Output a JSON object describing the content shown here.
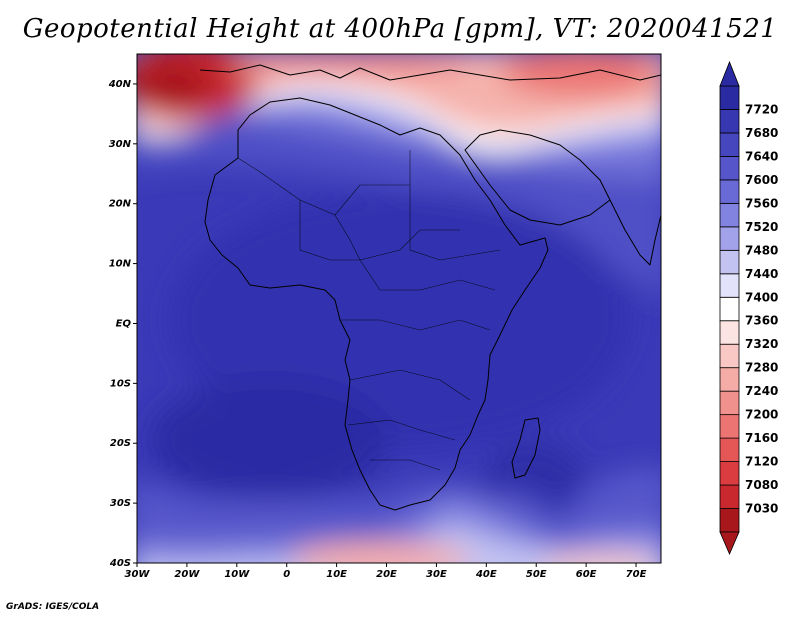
{
  "chart_data": {
    "type": "heatmap",
    "title": "Geopotential Height at 400hPa [gpm], VT: 2020041521",
    "variable": "Geopotential Height",
    "level": "400hPa",
    "units": "gpm",
    "valid_time": "2020041521",
    "x_ticks": [
      "30W",
      "20W",
      "10W",
      "0",
      "10E",
      "20E",
      "30E",
      "40E",
      "50E",
      "60E",
      "70E"
    ],
    "x_values": [
      -30,
      -20,
      -10,
      0,
      10,
      20,
      30,
      40,
      50,
      60,
      70
    ],
    "y_ticks": [
      "40S",
      "30S",
      "20S",
      "10S",
      "EQ",
      "10N",
      "20N",
      "30N",
      "40N"
    ],
    "y_values": [
      -40,
      -30,
      -20,
      -10,
      0,
      10,
      20,
      30,
      40
    ],
    "xlim": [
      -30,
      75
    ],
    "ylim": [
      -40,
      45
    ],
    "colorbar": {
      "levels": [
        "7030",
        "7080",
        "7120",
        "7160",
        "7200",
        "7240",
        "7280",
        "7320",
        "7360",
        "7400",
        "7440",
        "7480",
        "7520",
        "7560",
        "7600",
        "7640",
        "7680",
        "7720"
      ],
      "colors": [
        "#a8171c",
        "#c8282e",
        "#da3c40",
        "#e55657",
        "#ec7472",
        "#f1918d",
        "#f5aca7",
        "#f9c8c4",
        "#fce4e2",
        "#ffffff",
        "#e2e2fa",
        "#c3c3f2",
        "#a2a2ea",
        "#8282e0",
        "#6a6ad6",
        "#5656ca",
        "#4646bf",
        "#3737b1",
        "#2a2aa2"
      ],
      "extend": "both"
    },
    "pattern": "Highest heights (~7600-7680 gpm) over the tropics and southern Africa / South Atlantic; lower heights (7030-7300 gpm) over the Mediterranean / southern Europe in the NW and along 40S."
  },
  "footer": {
    "credit": "GrADS: IGES/COLA"
  }
}
